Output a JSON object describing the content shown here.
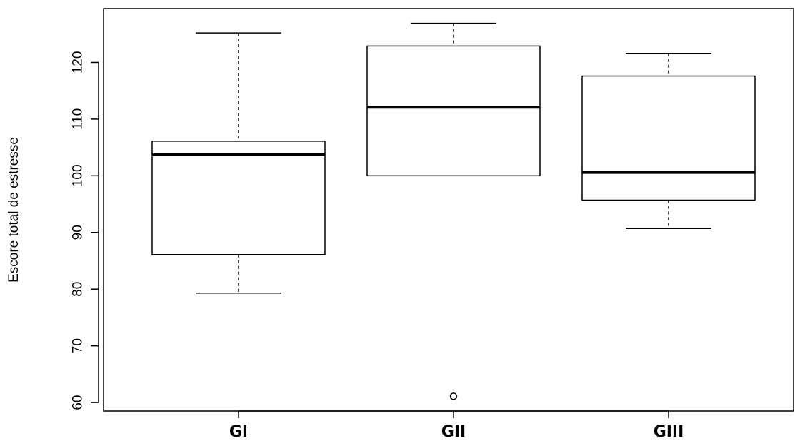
{
  "chart_data": {
    "type": "boxplot",
    "title": "",
    "xlabel": "",
    "ylabel": "Escore total de estresse",
    "ylim": [
      58.5,
      129.5
    ],
    "yticks": [
      60,
      70,
      80,
      90,
      100,
      110,
      120
    ],
    "grid": false,
    "categories": [
      "GI",
      "GII",
      "GIII"
    ],
    "boxes": [
      {
        "category": "GI",
        "whisker_low": 79.3,
        "q1": 86.1,
        "median": 103.7,
        "q3": 106.1,
        "whisker_high": 125.2,
        "outliers": []
      },
      {
        "category": "GII",
        "whisker_low": 100.0,
        "q1": 100.0,
        "median": 112.1,
        "q3": 122.9,
        "whisker_high": 126.9,
        "outliers": [
          61.1
        ]
      },
      {
        "category": "GIII",
        "whisker_low": 90.7,
        "q1": 95.7,
        "median": 100.6,
        "q3": 117.6,
        "whisker_high": 121.6,
        "outliers": []
      }
    ]
  }
}
